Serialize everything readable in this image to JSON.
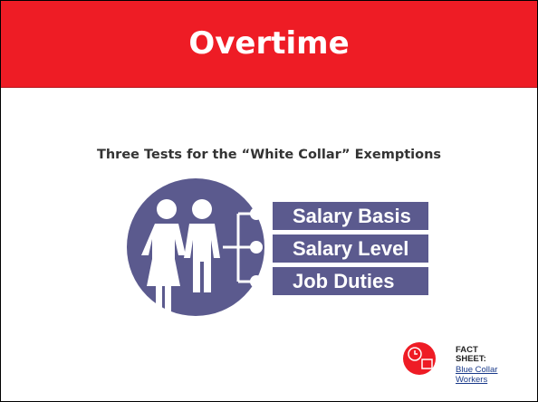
{
  "header": {
    "title": "Overtime"
  },
  "subtitle": "Three Tests for the “White Collar” Exemptions",
  "tests": [
    "Salary Basis",
    "Salary Level",
    "Job Duties"
  ],
  "fact_sheet": {
    "label": "FACT SHEET:",
    "link": "Blue Collar Workers"
  }
}
